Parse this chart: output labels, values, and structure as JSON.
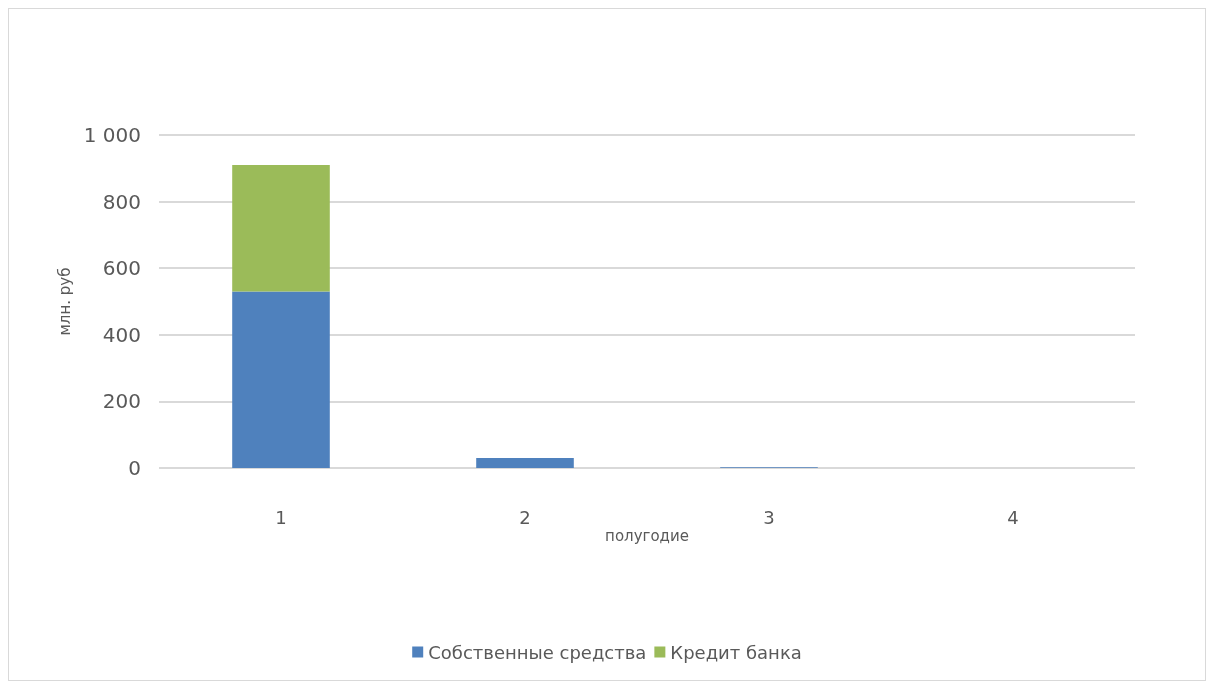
{
  "chart_data": {
    "type": "bar",
    "stacked": true,
    "xlabel": "полугодие",
    "ylabel": "млн. руб",
    "categories": [
      "1",
      "2",
      "3",
      "4"
    ],
    "series": [
      {
        "name": "Собственные средства",
        "color": "#4f81bd",
        "values": [
          530,
          30,
          2,
          0
        ]
      },
      {
        "name": "Кредит банка",
        "color": "#9bbb59",
        "values": [
          380,
          0,
          0,
          0
        ]
      }
    ],
    "ylim": [
      0,
      1000
    ],
    "yticks": [
      0,
      200,
      400,
      600,
      800,
      {
        "value": 1000,
        "label": "1 000"
      }
    ],
    "grid": "y",
    "legend": "bottom"
  }
}
